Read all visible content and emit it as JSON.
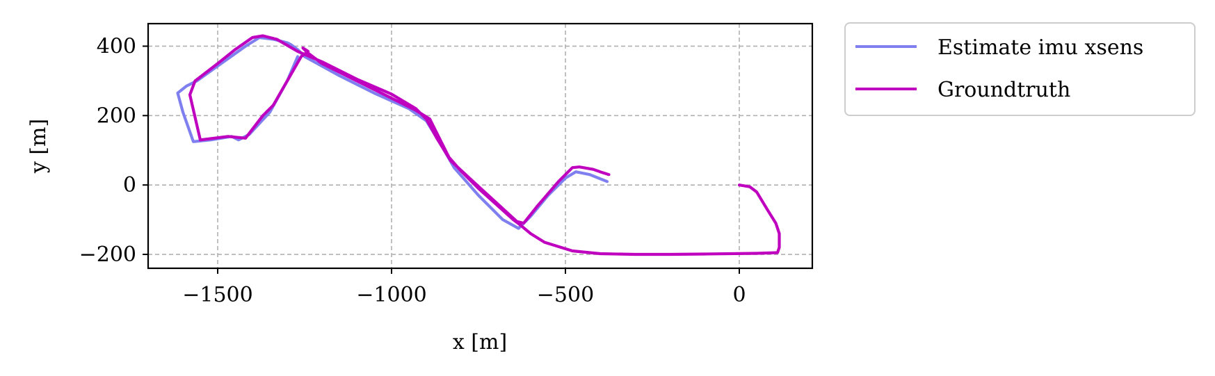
{
  "chart_data": {
    "type": "line",
    "title": "",
    "xlabel": "x [m]",
    "ylabel": "y [m]",
    "xlim": [
      -1700,
      210
    ],
    "ylim": [
      -240,
      465
    ],
    "xticks": [
      -1500,
      -1000,
      -500,
      0
    ],
    "xtick_labels": [
      "−1500",
      "−1000",
      "−500",
      "0"
    ],
    "yticks": [
      -200,
      0,
      200,
      400
    ],
    "ytick_labels": [
      "−200",
      "0",
      "200",
      "400"
    ],
    "grid": true,
    "legend_position": "outside-right-top",
    "series": [
      {
        "name": "Estimate imu xsens",
        "color": "#7f7ff0",
        "points": [
          [
            -380,
            10
          ],
          [
            -430,
            30
          ],
          [
            -470,
            38
          ],
          [
            -500,
            20
          ],
          [
            -550,
            -30
          ],
          [
            -600,
            -90
          ],
          [
            -635,
            -125
          ],
          [
            -680,
            -100
          ],
          [
            -750,
            -30
          ],
          [
            -820,
            50
          ],
          [
            -860,
            120
          ],
          [
            -900,
            185
          ],
          [
            -950,
            220
          ],
          [
            -1050,
            265
          ],
          [
            -1150,
            315
          ],
          [
            -1250,
            370
          ],
          [
            -1270,
            390
          ],
          [
            -1290,
            405
          ],
          [
            -1300,
            410
          ],
          [
            -1340,
            420
          ],
          [
            -1380,
            425
          ],
          [
            -1420,
            400
          ],
          [
            -1490,
            350
          ],
          [
            -1560,
            300
          ],
          [
            -1590,
            285
          ],
          [
            -1615,
            265
          ],
          [
            -1600,
            210
          ],
          [
            -1570,
            125
          ],
          [
            -1520,
            130
          ],
          [
            -1460,
            140
          ],
          [
            -1440,
            130
          ],
          [
            -1410,
            145
          ],
          [
            -1350,
            210
          ],
          [
            -1300,
            300
          ],
          [
            -1270,
            370
          ]
        ]
      },
      {
        "name": "Groundtruth",
        "color": "#bf00bf",
        "points": [
          [
            0,
            0
          ],
          [
            30,
            -5
          ],
          [
            50,
            -20
          ],
          [
            80,
            -70
          ],
          [
            105,
            -110
          ],
          [
            115,
            -140
          ],
          [
            115,
            -180
          ],
          [
            110,
            -195
          ],
          [
            50,
            -197
          ],
          [
            -100,
            -199
          ],
          [
            -200,
            -200
          ],
          [
            -300,
            -200
          ],
          [
            -400,
            -198
          ],
          [
            -480,
            -190
          ],
          [
            -560,
            -165
          ],
          [
            -600,
            -140
          ],
          [
            -630,
            -115
          ],
          [
            -650,
            -100
          ],
          [
            -700,
            -55
          ],
          [
            -750,
            -10
          ],
          [
            -800,
            40
          ],
          [
            -835,
            80
          ],
          [
            -870,
            150
          ],
          [
            -890,
            190
          ],
          [
            -930,
            215
          ],
          [
            -1000,
            250
          ],
          [
            -1100,
            300
          ],
          [
            -1200,
            350
          ],
          [
            -1240,
            380
          ],
          [
            -1255,
            395
          ],
          [
            -1240,
            385
          ],
          [
            -1260,
            370
          ],
          [
            -1300,
            300
          ],
          [
            -1340,
            230
          ],
          [
            -1370,
            200
          ],
          [
            -1420,
            135
          ],
          [
            -1470,
            140
          ],
          [
            -1550,
            130
          ],
          [
            -1580,
            260
          ],
          [
            -1565,
            300
          ],
          [
            -1500,
            350
          ],
          [
            -1450,
            390
          ],
          [
            -1400,
            425
          ],
          [
            -1370,
            430
          ],
          [
            -1330,
            420
          ],
          [
            -1270,
            385
          ],
          [
            -1200,
            355
          ],
          [
            -1100,
            305
          ],
          [
            -1000,
            262
          ],
          [
            -930,
            220
          ],
          [
            -900,
            190
          ],
          [
            -870,
            135
          ],
          [
            -830,
            70
          ],
          [
            -760,
            5
          ],
          [
            -700,
            -50
          ],
          [
            -640,
            -105
          ],
          [
            -620,
            -110
          ],
          [
            -580,
            -60
          ],
          [
            -520,
            10
          ],
          [
            -480,
            50
          ],
          [
            -460,
            52
          ],
          [
            -420,
            45
          ],
          [
            -400,
            38
          ],
          [
            -375,
            30
          ]
        ]
      }
    ]
  }
}
